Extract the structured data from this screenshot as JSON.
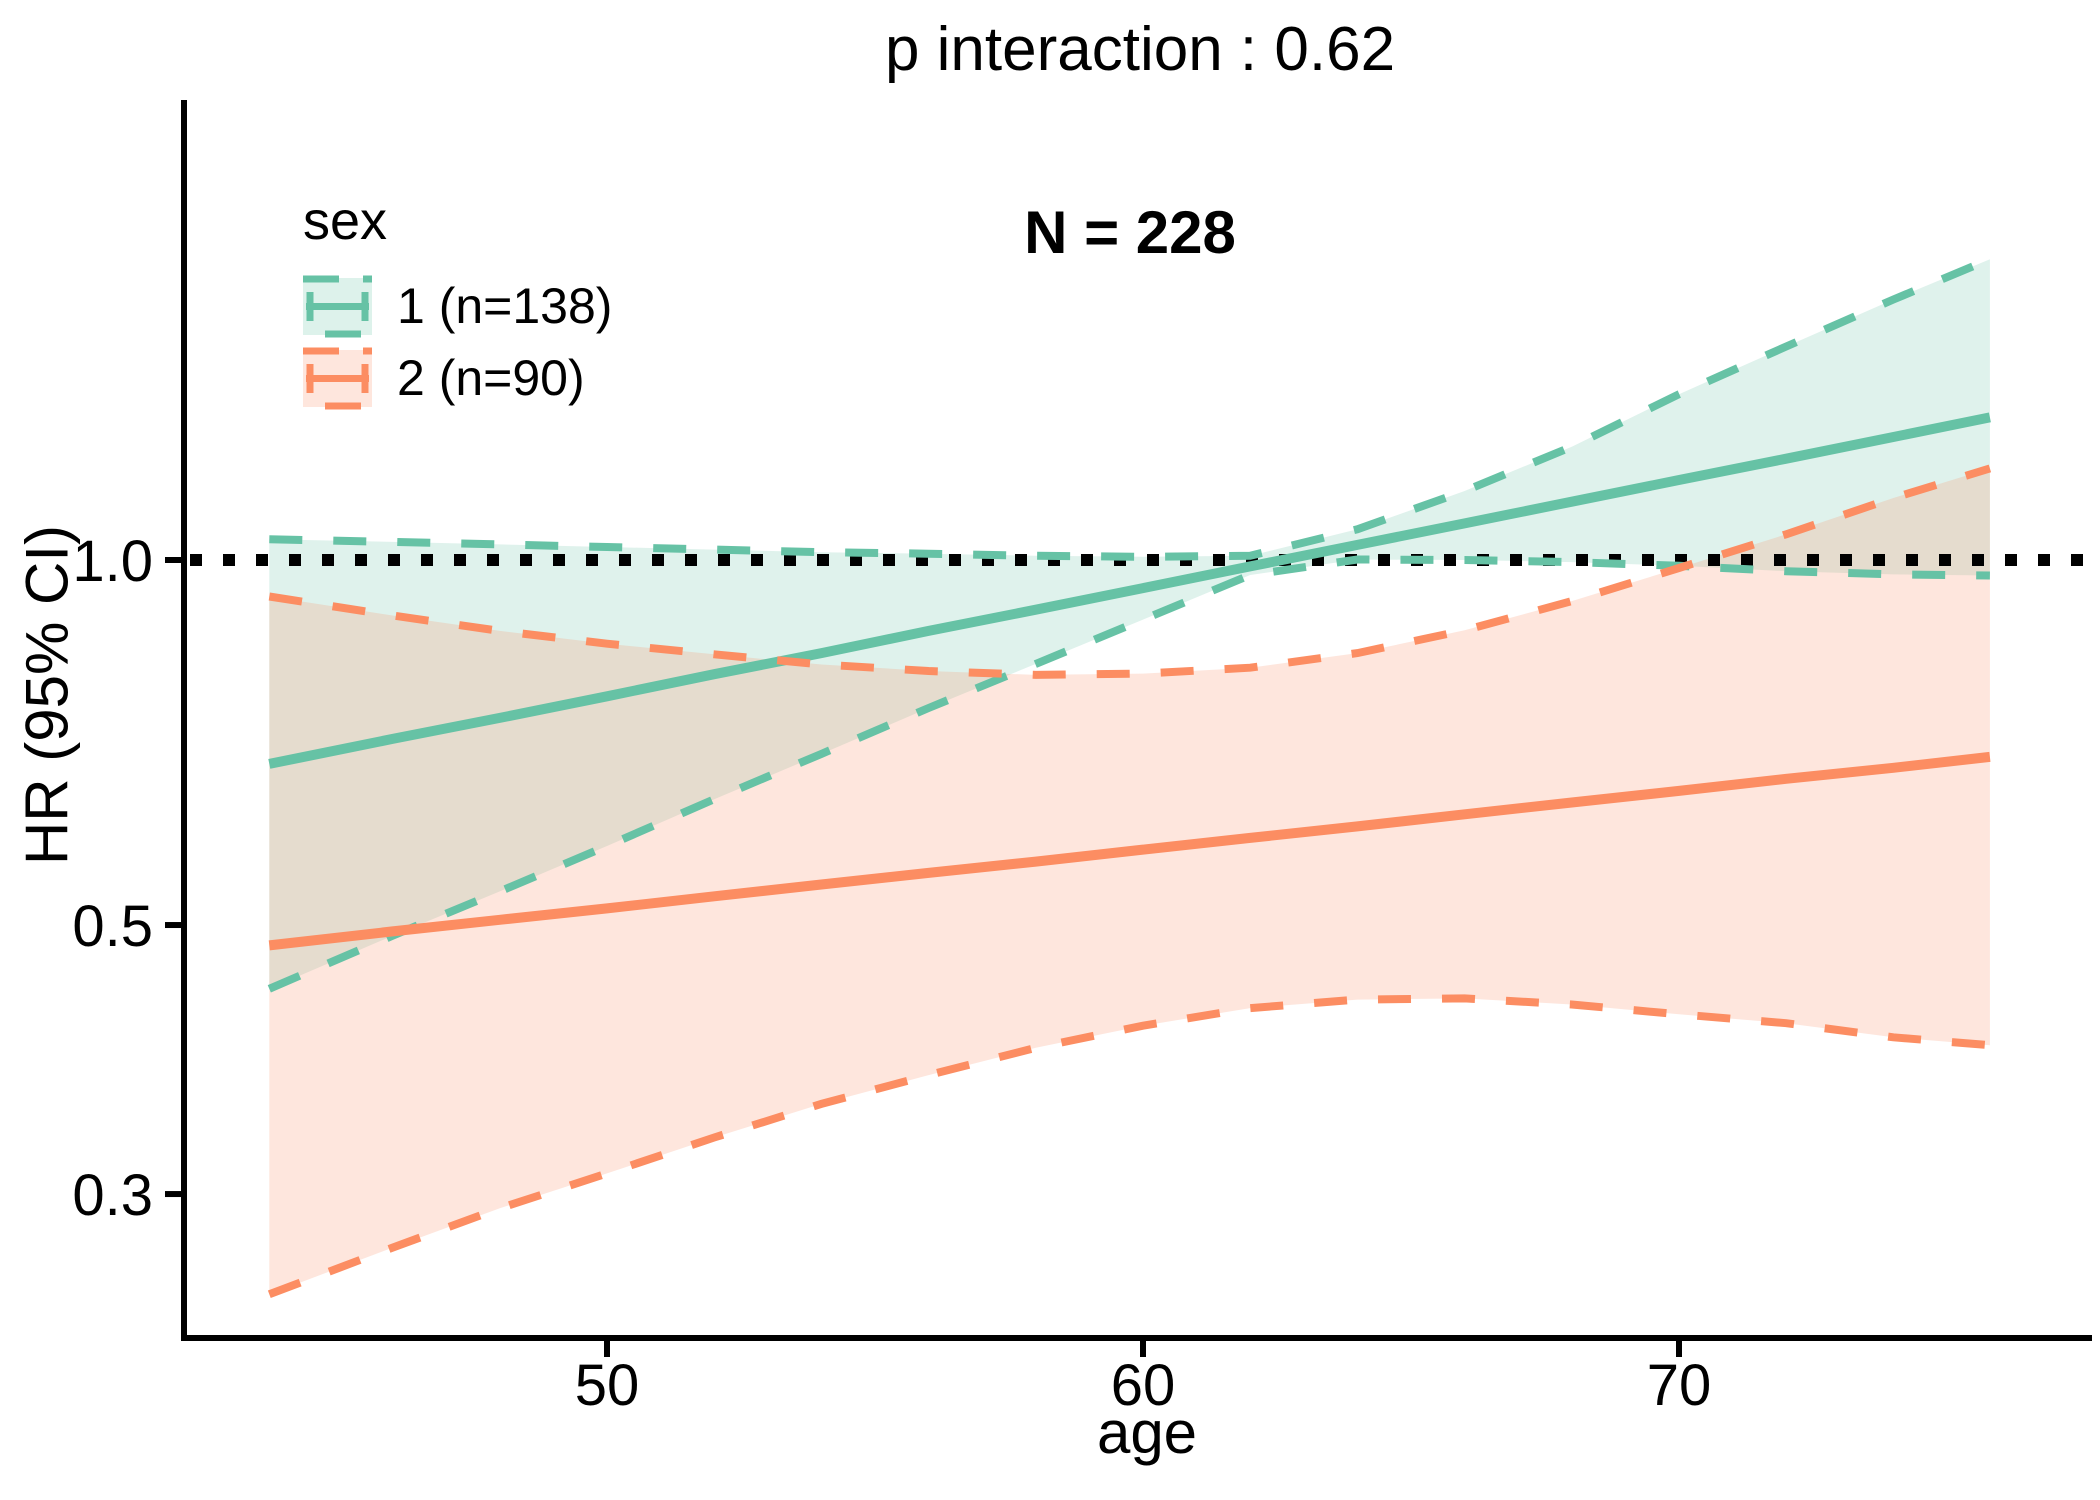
{
  "title": "p interaction : 0.62",
  "annotation": {
    "text": "N = 228"
  },
  "legend": {
    "title": "sex",
    "items": [
      {
        "label": "1 (n=138)",
        "color": "#66C2A5"
      },
      {
        "label": "2 (n=90)",
        "color": "#FC8D62"
      }
    ]
  },
  "axes": {
    "x": {
      "label": "age",
      "min": 42.1,
      "max": 77.7,
      "ticks": [
        {
          "value": 50,
          "label": "50"
        },
        {
          "value": 60,
          "label": "60"
        },
        {
          "value": 70,
          "label": "70"
        }
      ]
    },
    "y": {
      "label": "HR (95% CI)",
      "scale": "log",
      "ticks": [
        {
          "value": 1.0,
          "label": "1.0"
        },
        {
          "value": 0.5,
          "label": "0.5"
        },
        {
          "value": 0.3,
          "label": "0.3"
        }
      ]
    }
  },
  "reference_line": {
    "y": 1.0,
    "color": "#000000",
    "style": "dotted"
  },
  "chart_data": {
    "type": "line",
    "title": "p interaction : 0.62",
    "annotation": "N = 228",
    "xlabel": "age",
    "ylabel": "HR (95% CI)",
    "y_scale": "log",
    "legend_position": "top-left-inside",
    "grid": false,
    "x_range_data": [
      43.7,
      75.8
    ],
    "x": [
      43.7,
      46,
      48,
      50,
      52,
      54,
      56,
      58,
      60,
      62,
      64,
      66,
      68,
      70,
      72,
      74,
      75.8
    ],
    "series": [
      {
        "name": "1 (n=138)",
        "group": "sex=1",
        "n": 138,
        "color": "#66C2A5",
        "fill_alpha": 0.21,
        "hr": [
          0.679,
          0.712,
          0.741,
          0.772,
          0.805,
          0.838,
          0.874,
          0.91,
          0.948,
          0.988,
          1.029,
          1.072,
          1.117,
          1.164,
          1.212,
          1.263,
          1.311
        ],
        "upper": [
          1.04,
          1.035,
          1.03,
          1.025,
          1.02,
          1.015,
          1.012,
          1.008,
          1.006,
          1.008,
          1.06,
          1.14,
          1.24,
          1.37,
          1.5,
          1.64,
          1.77
        ],
        "lower": [
          0.443,
          0.49,
          0.533,
          0.581,
          0.635,
          0.692,
          0.755,
          0.821,
          0.893,
          0.972,
          1.001,
          1.0,
          0.996,
          0.989,
          0.979,
          0.973,
          0.971
        ]
      },
      {
        "name": "2 (n=90)",
        "group": "sex=2",
        "n": 90,
        "color": "#FC8D62",
        "fill_alpha": 0.22,
        "hr": [
          0.481,
          0.494,
          0.505,
          0.516,
          0.528,
          0.54,
          0.552,
          0.564,
          0.577,
          0.59,
          0.603,
          0.617,
          0.631,
          0.645,
          0.66,
          0.674,
          0.688
        ],
        "upper": [
          0.933,
          0.9,
          0.874,
          0.853,
          0.836,
          0.82,
          0.81,
          0.804,
          0.806,
          0.815,
          0.838,
          0.875,
          0.925,
          0.985,
          1.05,
          1.125,
          1.19
        ],
        "lower": [
          0.248,
          0.271,
          0.292,
          0.312,
          0.334,
          0.356,
          0.376,
          0.396,
          0.413,
          0.427,
          0.434,
          0.435,
          0.43,
          0.422,
          0.415,
          0.404,
          0.398
        ]
      }
    ]
  }
}
